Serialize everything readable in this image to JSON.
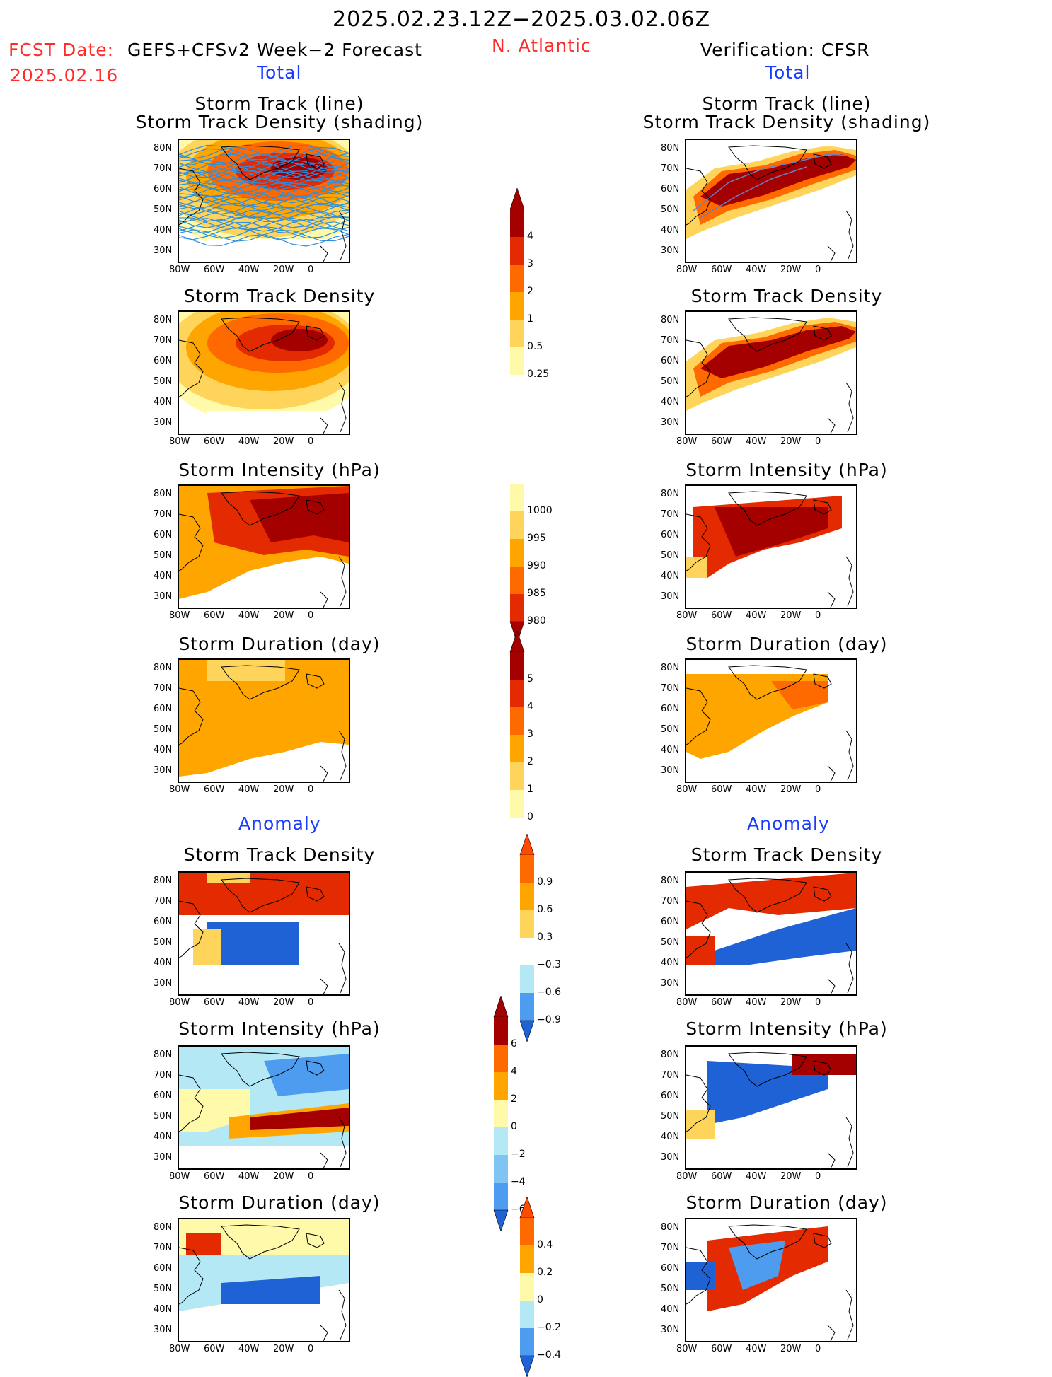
{
  "header": {
    "date_range": "2025.02.23.12Z−2025.03.02.06Z",
    "fcst_label": "FCST Date:",
    "fcst_model": "GEFS+CFSv2 Week−2 Forecast",
    "fcst_date": "2025.02.16",
    "region": "N. Atlantic",
    "verification": "Verification: CFSR"
  },
  "sections": {
    "total": "Total",
    "anomaly": "Anomaly"
  },
  "axes": {
    "lat_ticks": [
      "80N",
      "70N",
      "60N",
      "50N",
      "40N",
      "30N"
    ],
    "lon_ticks": [
      "80W",
      "60W",
      "40W",
      "20W",
      "0"
    ]
  },
  "panel_titles": {
    "track_line": "Storm Track (line)",
    "track_shading": "Storm Track Density (shading)",
    "track_density": "Storm Track Density",
    "intensity": "Storm Intensity (hPa)",
    "duration": "Storm Duration (day)"
  },
  "colorbars": {
    "density_total": [
      "4",
      "3",
      "2",
      "1",
      "0.5",
      "0.25"
    ],
    "intensity_total": [
      "1000",
      "995",
      "990",
      "985",
      "980"
    ],
    "duration_total": [
      "5",
      "4",
      "3",
      "2",
      "1",
      "0"
    ],
    "density_anom": [
      "0.9",
      "0.6",
      "0.3",
      "−0.3",
      "−0.6",
      "−0.9"
    ],
    "intensity_anom": [
      "6",
      "4",
      "2",
      "0",
      "−2",
      "−4",
      "−6"
    ],
    "duration_anom": [
      "0.4",
      "0.2",
      "0",
      "−0.2",
      "−0.4"
    ]
  },
  "colors": {
    "warm": [
      "#fffaaa",
      "#ffd45a",
      "#ffa500",
      "#ff6a00",
      "#e32a00",
      "#a50000"
    ],
    "cool": [
      "#b5e8f5",
      "#7fc4f2",
      "#4d9cef",
      "#1e62d6"
    ],
    "track_lines": "#2c8ee0"
  },
  "chart_data": {
    "type": "heatmap",
    "region": "N. Atlantic",
    "lat_range": [
      25,
      85
    ],
    "lon_range": [
      -80,
      0
    ],
    "panels": [
      {
        "column": "forecast",
        "section": "Total",
        "variable": "Storm Track Density (shading)",
        "overlay": "Storm Track (line)"
      },
      {
        "column": "forecast",
        "section": "Total",
        "variable": "Storm Track Density"
      },
      {
        "column": "forecast",
        "section": "Total",
        "variable": "Storm Intensity (hPa)"
      },
      {
        "column": "forecast",
        "section": "Total",
        "variable": "Storm Duration (day)"
      },
      {
        "column": "forecast",
        "section": "Anomaly",
        "variable": "Storm Track Density"
      },
      {
        "column": "forecast",
        "section": "Anomaly",
        "variable": "Storm Intensity (hPa)"
      },
      {
        "column": "forecast",
        "section": "Anomaly",
        "variable": "Storm Duration (day)"
      },
      {
        "column": "verification",
        "section": "Total",
        "variable": "Storm Track Density (shading)",
        "overlay": "Storm Track (line)"
      },
      {
        "column": "verification",
        "section": "Total",
        "variable": "Storm Track Density"
      },
      {
        "column": "verification",
        "section": "Total",
        "variable": "Storm Intensity (hPa)"
      },
      {
        "column": "verification",
        "section": "Total",
        "variable": "Storm Duration (day)"
      },
      {
        "column": "verification",
        "section": "Anomaly",
        "variable": "Storm Track Density"
      },
      {
        "column": "verification",
        "section": "Anomaly",
        "variable": "Storm Intensity (hPa)"
      },
      {
        "column": "verification",
        "section": "Anomaly",
        "variable": "Storm Duration (day)"
      }
    ]
  }
}
